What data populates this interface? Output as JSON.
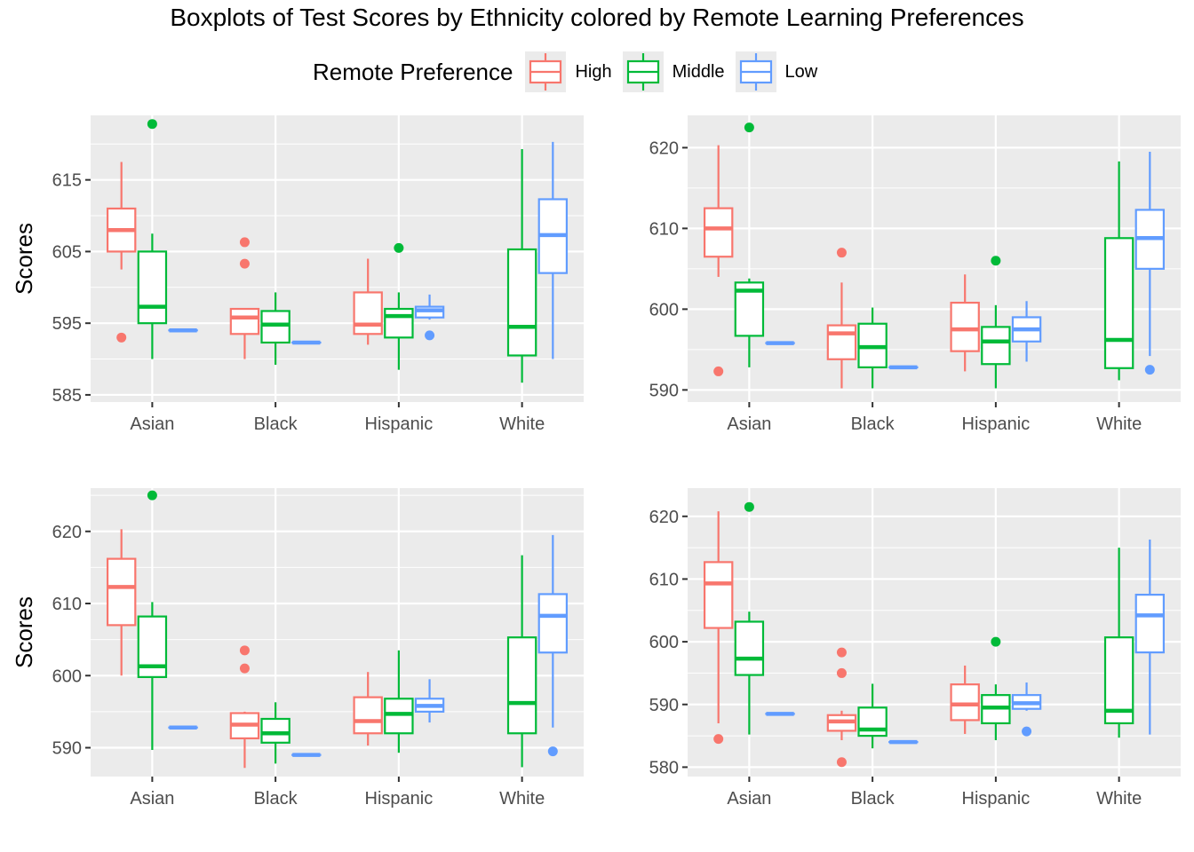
{
  "title": "Boxplots of Test Scores by Ethnicity colored by Remote Learning Preferences",
  "legend": {
    "title": "Remote Preference",
    "items": [
      {
        "label": "High",
        "color": "#F8766D"
      },
      {
        "label": "Middle",
        "color": "#00BA38"
      },
      {
        "label": "Low",
        "color": "#619CFF"
      }
    ]
  },
  "chart_data": [
    {
      "type": "boxplot",
      "ylabel": "Scores",
      "ylim": [
        584,
        624
      ],
      "yticks": [
        585,
        595,
        605,
        615
      ],
      "categories": [
        "Asian",
        "Black",
        "Hispanic",
        "White"
      ],
      "series": [
        {
          "name": "High",
          "boxes": [
            {
              "lower": 602.5,
              "q1": 605,
              "median": 608,
              "q3": 611,
              "upper": 617.5,
              "outliers": [
                593
              ]
            },
            {
              "lower": 590,
              "q1": 593.5,
              "median": 595.8,
              "q3": 597,
              "upper": 597,
              "outliers": [
                606.3,
                603.3
              ]
            },
            {
              "lower": 592,
              "q1": 593.5,
              "median": 594.8,
              "q3": 599.3,
              "upper": 604,
              "outliers": []
            },
            null
          ]
        },
        {
          "name": "Middle",
          "boxes": [
            {
              "lower": 590,
              "q1": 595,
              "median": 597.3,
              "q3": 605,
              "upper": 607.5,
              "outliers": [
                622.8
              ]
            },
            {
              "lower": 589.2,
              "q1": 592.3,
              "median": 594.8,
              "q3": 596.7,
              "upper": 599.3,
              "outliers": []
            },
            {
              "lower": 588.5,
              "q1": 593,
              "median": 596,
              "q3": 597,
              "upper": 599.3,
              "outliers": [
                605.5
              ]
            },
            {
              "lower": 586.7,
              "q1": 590.5,
              "median": 594.5,
              "q3": 605.3,
              "upper": 619.3,
              "outliers": []
            }
          ]
        },
        {
          "name": "Low",
          "boxes": [
            {
              "lower": 594,
              "q1": 594,
              "median": 594,
              "q3": 594,
              "upper": 594,
              "outliers": []
            },
            {
              "lower": 592.3,
              "q1": 592.3,
              "median": 592.3,
              "q3": 592.3,
              "upper": 592.3,
              "outliers": []
            },
            {
              "lower": 595.5,
              "q1": 595.8,
              "median": 596.8,
              "q3": 597.3,
              "upper": 599,
              "outliers": [
                593.3
              ]
            },
            {
              "lower": 590,
              "q1": 602,
              "median": 607.3,
              "q3": 612.3,
              "upper": 620.3,
              "outliers": []
            }
          ]
        }
      ]
    },
    {
      "type": "boxplot",
      "ylabel": "",
      "ylim": [
        588.5,
        624
      ],
      "yticks": [
        590,
        600,
        610,
        620
      ],
      "categories": [
        "Asian",
        "Black",
        "Hispanic",
        "White"
      ],
      "series": [
        {
          "name": "High",
          "boxes": [
            {
              "lower": 604,
              "q1": 606.5,
              "median": 610,
              "q3": 612.5,
              "upper": 620.3,
              "outliers": [
                592.3
              ]
            },
            {
              "lower": 590.2,
              "q1": 593.8,
              "median": 597,
              "q3": 598,
              "upper": 603.3,
              "outliers": [
                607
              ]
            },
            {
              "lower": 592.3,
              "q1": 594.8,
              "median": 597.5,
              "q3": 600.8,
              "upper": 604.3,
              "outliers": []
            },
            null
          ]
        },
        {
          "name": "Middle",
          "boxes": [
            {
              "lower": 592.8,
              "q1": 596.7,
              "median": 602.3,
              "q3": 603.3,
              "upper": 603.8,
              "outliers": [
                622.5
              ]
            },
            {
              "lower": 590.2,
              "q1": 592.8,
              "median": 595.3,
              "q3": 598.2,
              "upper": 600.2,
              "outliers": []
            },
            {
              "lower": 590.2,
              "q1": 593.2,
              "median": 596,
              "q3": 597.8,
              "upper": 600.5,
              "outliers": [
                606
              ]
            },
            {
              "lower": 591.2,
              "q1": 592.7,
              "median": 596.2,
              "q3": 608.8,
              "upper": 618.3,
              "outliers": []
            }
          ]
        },
        {
          "name": "Low",
          "boxes": [
            {
              "lower": 595.8,
              "q1": 595.8,
              "median": 595.8,
              "q3": 595.8,
              "upper": 595.8,
              "outliers": []
            },
            {
              "lower": 592.8,
              "q1": 592.8,
              "median": 592.8,
              "q3": 592.8,
              "upper": 592.8,
              "outliers": []
            },
            {
              "lower": 593.5,
              "q1": 596,
              "median": 597.5,
              "q3": 599,
              "upper": 601,
              "outliers": []
            },
            {
              "lower": 594.2,
              "q1": 605,
              "median": 608.8,
              "q3": 612.3,
              "upper": 619.5,
              "outliers": [
                592.5
              ]
            }
          ]
        }
      ]
    },
    {
      "type": "boxplot",
      "ylabel": "Scores",
      "ylim": [
        586,
        626
      ],
      "yticks": [
        590,
        600,
        610,
        620
      ],
      "categories": [
        "Asian",
        "Black",
        "Hispanic",
        "White"
      ],
      "series": [
        {
          "name": "High",
          "boxes": [
            {
              "lower": 600,
              "q1": 607,
              "median": 612.3,
              "q3": 616.2,
              "upper": 620.3,
              "outliers": []
            },
            {
              "lower": 587.2,
              "q1": 591.3,
              "median": 593.2,
              "q3": 594.8,
              "upper": 595,
              "outliers": [
                603.5,
                601
              ]
            },
            {
              "lower": 590.3,
              "q1": 592,
              "median": 593.7,
              "q3": 597,
              "upper": 600.5,
              "outliers": []
            },
            null
          ]
        },
        {
          "name": "Middle",
          "boxes": [
            {
              "lower": 589.7,
              "q1": 599.8,
              "median": 601.3,
              "q3": 608.2,
              "upper": 610.2,
              "outliers": [
                625
              ]
            },
            {
              "lower": 587.8,
              "q1": 590.7,
              "median": 592,
              "q3": 594,
              "upper": 596.3,
              "outliers": []
            },
            {
              "lower": 589.3,
              "q1": 592,
              "median": 594.7,
              "q3": 596.8,
              "upper": 603.5,
              "outliers": []
            },
            {
              "lower": 587.3,
              "q1": 592,
              "median": 596.2,
              "q3": 605.3,
              "upper": 616.7,
              "outliers": []
            }
          ]
        },
        {
          "name": "Low",
          "boxes": [
            {
              "lower": 592.8,
              "q1": 592.8,
              "median": 592.8,
              "q3": 592.8,
              "upper": 592.8,
              "outliers": []
            },
            {
              "lower": 589,
              "q1": 589,
              "median": 589,
              "q3": 589,
              "upper": 589,
              "outliers": []
            },
            {
              "lower": 593.5,
              "q1": 595,
              "median": 595.8,
              "q3": 596.8,
              "upper": 599.5,
              "outliers": []
            },
            {
              "lower": 592.8,
              "q1": 603.2,
              "median": 608.3,
              "q3": 611.3,
              "upper": 619.5,
              "outliers": [
                589.5
              ]
            }
          ]
        }
      ]
    },
    {
      "type": "boxplot",
      "ylabel": "",
      "ylim": [
        578.5,
        624.5
      ],
      "yticks": [
        580,
        590,
        600,
        610,
        620
      ],
      "categories": [
        "Asian",
        "Black",
        "Hispanic",
        "White"
      ],
      "series": [
        {
          "name": "High",
          "boxes": [
            {
              "lower": 587,
              "q1": 602.2,
              "median": 609.3,
              "q3": 612.7,
              "upper": 620.8,
              "outliers": [
                584.5
              ]
            },
            {
              "lower": 584.3,
              "q1": 585.8,
              "median": 587.3,
              "q3": 588.3,
              "upper": 589,
              "outliers": [
                598.3,
                595,
                580.8
              ]
            },
            {
              "lower": 585.3,
              "q1": 587.5,
              "median": 590,
              "q3": 593.2,
              "upper": 596.2,
              "outliers": []
            },
            null
          ]
        },
        {
          "name": "Middle",
          "boxes": [
            {
              "lower": 585.2,
              "q1": 594.7,
              "median": 597.3,
              "q3": 603.2,
              "upper": 604.8,
              "outliers": [
                621.5
              ]
            },
            {
              "lower": 583,
              "q1": 585,
              "median": 586,
              "q3": 589.5,
              "upper": 593.3,
              "outliers": []
            },
            {
              "lower": 584.3,
              "q1": 587,
              "median": 589.5,
              "q3": 591.5,
              "upper": 593.2,
              "outliers": [
                600
              ]
            },
            {
              "lower": 584.7,
              "q1": 587,
              "median": 589,
              "q3": 600.7,
              "upper": 615,
              "outliers": []
            }
          ]
        },
        {
          "name": "Low",
          "boxes": [
            {
              "lower": 588.5,
              "q1": 588.5,
              "median": 588.5,
              "q3": 588.5,
              "upper": 588.5,
              "outliers": []
            },
            {
              "lower": 584,
              "q1": 584,
              "median": 584,
              "q3": 584,
              "upper": 584,
              "outliers": []
            },
            {
              "lower": 589,
              "q1": 589.3,
              "median": 590.2,
              "q3": 591.5,
              "upper": 593.5,
              "outliers": [
                585.7
              ]
            },
            {
              "lower": 585.2,
              "q1": 598.3,
              "median": 604.2,
              "q3": 607.5,
              "upper": 616.3,
              "outliers": []
            }
          ]
        }
      ]
    }
  ]
}
